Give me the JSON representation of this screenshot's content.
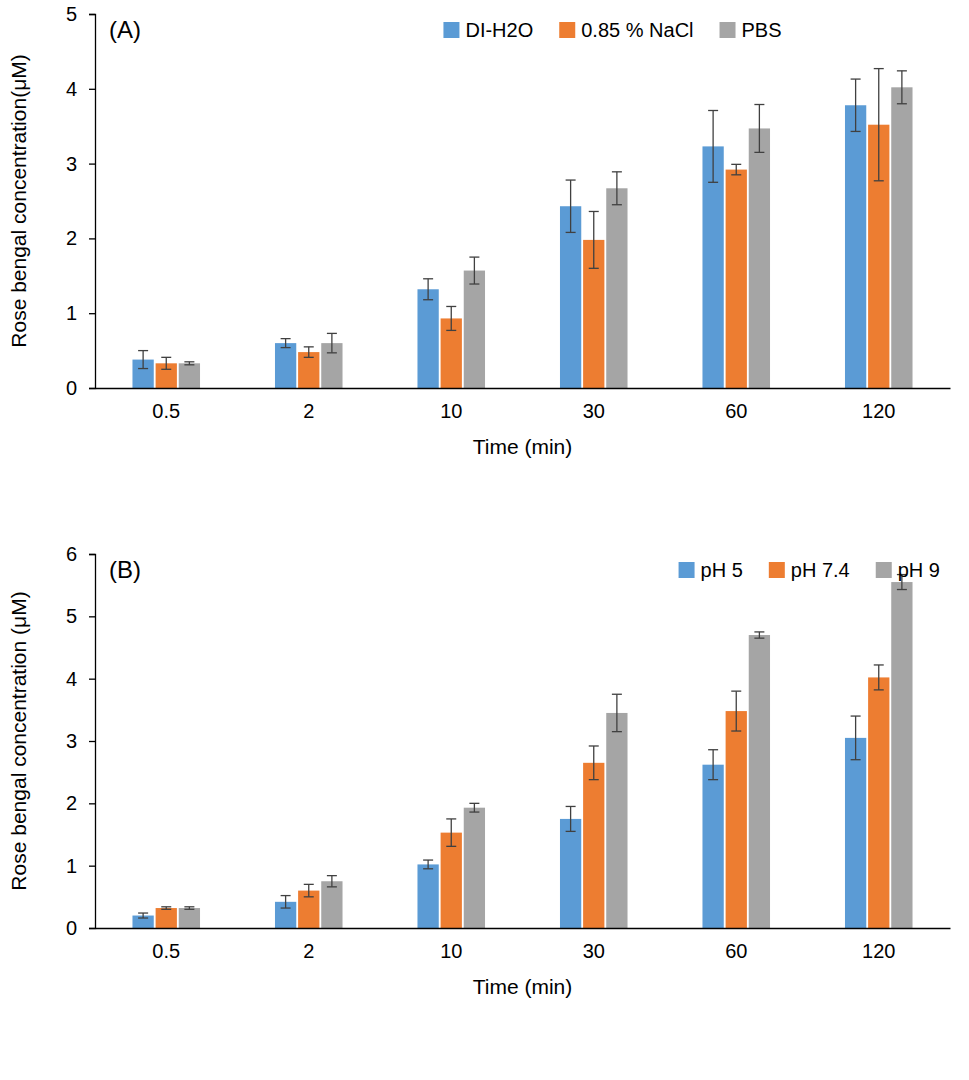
{
  "chart_data": [
    {
      "type": "bar",
      "annotation": "(A)",
      "y_label": "Rose bengal concentration(μM)",
      "x_label": "Time (min)",
      "categories": [
        "0.5",
        "2",
        "10",
        "30",
        "60",
        "120"
      ],
      "series": [
        {
          "name": "DI-H2O",
          "color": "#5b9bd5",
          "values": [
            0.38,
            0.6,
            1.32,
            2.43,
            3.23,
            3.78
          ],
          "errors": [
            0.12,
            0.06,
            0.14,
            0.35,
            0.48,
            0.35
          ]
        },
        {
          "name": "0.85 % NaCl",
          "color": "#ed7d31",
          "values": [
            0.33,
            0.48,
            0.93,
            1.98,
            2.92,
            3.52
          ],
          "errors": [
            0.08,
            0.07,
            0.16,
            0.38,
            0.07,
            0.75
          ]
        },
        {
          "name": "PBS",
          "color": "#a5a5a5",
          "values": [
            0.33,
            0.6,
            1.57,
            2.67,
            3.47,
            4.02
          ],
          "errors": [
            0.02,
            0.13,
            0.18,
            0.22,
            0.32,
            0.22
          ]
        }
      ],
      "ylim": [
        0,
        5
      ],
      "yticks": [
        0,
        1,
        2,
        3,
        4,
        5
      ],
      "grid": false,
      "legend": "top"
    },
    {
      "type": "bar",
      "annotation": "(B)",
      "y_label": "Rose bengal concentration (μM)",
      "x_label": "Time (min)",
      "categories": [
        "0.5",
        "2",
        "10",
        "30",
        "60",
        "120"
      ],
      "series": [
        {
          "name": "pH 5",
          "color": "#5b9bd5",
          "values": [
            0.2,
            0.42,
            1.02,
            1.75,
            2.62,
            3.05
          ],
          "errors": [
            0.04,
            0.1,
            0.07,
            0.2,
            0.24,
            0.35
          ]
        },
        {
          "name": "pH 7.4",
          "color": "#ed7d31",
          "values": [
            0.32,
            0.6,
            1.53,
            2.65,
            3.48,
            4.02
          ],
          "errors": [
            0.02,
            0.1,
            0.22,
            0.27,
            0.32,
            0.2
          ]
        },
        {
          "name": "pH 9",
          "color": "#a5a5a5",
          "values": [
            0.32,
            0.75,
            1.93,
            3.45,
            4.7,
            5.55
          ],
          "errors": [
            0.02,
            0.09,
            0.07,
            0.3,
            0.05,
            0.12
          ]
        }
      ],
      "ylim": [
        0,
        6
      ],
      "yticks": [
        0,
        1,
        2,
        3,
        4,
        5,
        6
      ],
      "grid": false,
      "legend": "top-right"
    }
  ]
}
